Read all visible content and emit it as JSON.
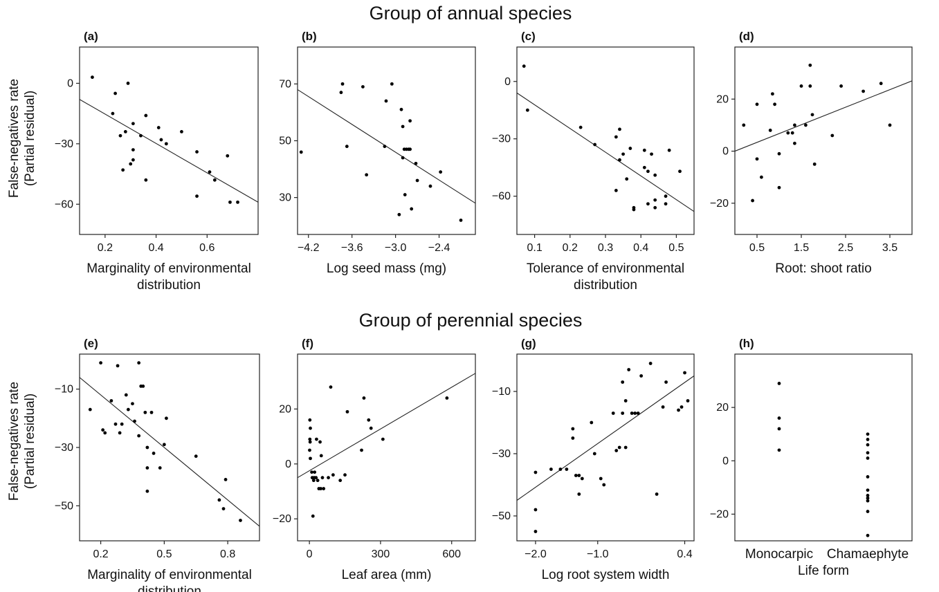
{
  "figure": {
    "ylabel_line1": "False-negatives rate",
    "ylabel_line2": "(Partial residual)",
    "groups": [
      {
        "title": "Group of annual species"
      },
      {
        "title": "Group of perennial species"
      }
    ]
  },
  "chart_data": [
    {
      "panel": "(a)",
      "type": "scatter",
      "xlabel": [
        "Marginality of environmental",
        "distribution"
      ],
      "xlim": [
        0.1,
        0.8
      ],
      "ylim": [
        -75,
        18
      ],
      "xticks": [
        0.2,
        0.4,
        0.6
      ],
      "xtick_labels": [
        "0.2",
        "0.4",
        "0.6"
      ],
      "yticks": [
        0,
        -30,
        -60
      ],
      "ytick_labels": [
        "0",
        "−30",
        "−60"
      ],
      "fit_line": [
        [
          0.1,
          -8
        ],
        [
          0.8,
          -59
        ]
      ],
      "points": [
        [
          0.15,
          3
        ],
        [
          0.24,
          -5
        ],
        [
          0.29,
          0
        ],
        [
          0.23,
          -15
        ],
        [
          0.31,
          -20
        ],
        [
          0.28,
          -24
        ],
        [
          0.26,
          -26
        ],
        [
          0.34,
          -26
        ],
        [
          0.36,
          -16
        ],
        [
          0.31,
          -33
        ],
        [
          0.31,
          -38
        ],
        [
          0.3,
          -40
        ],
        [
          0.27,
          -43
        ],
        [
          0.36,
          -48
        ],
        [
          0.41,
          -22
        ],
        [
          0.42,
          -28
        ],
        [
          0.44,
          -30
        ],
        [
          0.5,
          -24
        ],
        [
          0.56,
          -34
        ],
        [
          0.56,
          -56
        ],
        [
          0.61,
          -44
        ],
        [
          0.63,
          -48
        ],
        [
          0.68,
          -36
        ],
        [
          0.69,
          -59
        ],
        [
          0.72,
          -59
        ]
      ]
    },
    {
      "panel": "(b)",
      "type": "scatter",
      "xlabel": [
        "Log seed mass (mg)"
      ],
      "xlim": [
        -4.35,
        -1.9
      ],
      "ylim": [
        17,
        83
      ],
      "xticks": [
        -4.2,
        -3.6,
        -3.0,
        -2.4
      ],
      "xtick_labels": [
        "−4.2",
        "−3.6",
        "−3.0",
        "−2.4"
      ],
      "yticks": [
        70,
        50,
        30
      ],
      "ytick_labels": [
        "70",
        "50",
        "30"
      ],
      "fit_line": [
        [
          -4.35,
          68
        ],
        [
          -1.9,
          28
        ]
      ],
      "points": [
        [
          -4.3,
          46
        ],
        [
          -3.75,
          67
        ],
        [
          -3.73,
          70
        ],
        [
          -3.67,
          48
        ],
        [
          -3.45,
          69
        ],
        [
          -3.4,
          38
        ],
        [
          -3.15,
          48
        ],
        [
          -3.13,
          64
        ],
        [
          -3.05,
          70
        ],
        [
          -2.95,
          24
        ],
        [
          -2.92,
          61
        ],
        [
          -2.9,
          55
        ],
        [
          -2.9,
          44
        ],
        [
          -2.88,
          47
        ],
        [
          -2.87,
          31
        ],
        [
          -2.85,
          47
        ],
        [
          -2.82,
          47
        ],
        [
          -2.8,
          47
        ],
        [
          -2.8,
          57
        ],
        [
          -2.78,
          26
        ],
        [
          -2.72,
          42
        ],
        [
          -2.7,
          36
        ],
        [
          -2.52,
          34
        ],
        [
          -2.38,
          39
        ],
        [
          -2.1,
          22
        ]
      ]
    },
    {
      "panel": "(c)",
      "type": "scatter",
      "xlabel": [
        "Tolerance of environmental",
        "distribution"
      ],
      "xlim": [
        0.05,
        0.55
      ],
      "ylim": [
        -80,
        18
      ],
      "xticks": [
        0.1,
        0.2,
        0.3,
        0.4,
        0.5
      ],
      "xtick_labels": [
        "0.1",
        "0.2",
        "0.3",
        "0.4",
        "0.5"
      ],
      "yticks": [
        0,
        -30,
        -60
      ],
      "ytick_labels": [
        "0",
        "−30",
        "−60"
      ],
      "fit_line": [
        [
          0.05,
          -6
        ],
        [
          0.55,
          -68
        ]
      ],
      "points": [
        [
          0.07,
          8
        ],
        [
          0.08,
          -15
        ],
        [
          0.23,
          -24
        ],
        [
          0.27,
          -33
        ],
        [
          0.33,
          -29
        ],
        [
          0.33,
          -57
        ],
        [
          0.34,
          -25
        ],
        [
          0.35,
          -38
        ],
        [
          0.34,
          -41
        ],
        [
          0.36,
          -51
        ],
        [
          0.37,
          -35
        ],
        [
          0.38,
          -67
        ],
        [
          0.38,
          -66
        ],
        [
          0.41,
          -36
        ],
        [
          0.41,
          -45
        ],
        [
          0.42,
          -47
        ],
        [
          0.42,
          -64
        ],
        [
          0.43,
          -38
        ],
        [
          0.44,
          -49
        ],
        [
          0.44,
          -62
        ],
        [
          0.44,
          -66
        ],
        [
          0.47,
          -60
        ],
        [
          0.47,
          -64
        ],
        [
          0.48,
          -36
        ],
        [
          0.51,
          -47
        ]
      ]
    },
    {
      "panel": "(d)",
      "type": "scatter",
      "xlabel": [
        "Root: shoot ratio"
      ],
      "xlim": [
        0.0,
        4.0
      ],
      "ylim": [
        -32,
        40
      ],
      "xticks": [
        0.5,
        1.5,
        2.5,
        3.5
      ],
      "xtick_labels": [
        "0.5",
        "1.5",
        "2.5",
        "3.5"
      ],
      "yticks": [
        20,
        0,
        -20
      ],
      "ytick_labels": [
        "20",
        "0",
        "−20"
      ],
      "fit_line": [
        [
          0.0,
          0
        ],
        [
          4.0,
          27
        ]
      ],
      "points": [
        [
          0.2,
          10
        ],
        [
          0.4,
          -19
        ],
        [
          0.5,
          -3
        ],
        [
          0.5,
          18
        ],
        [
          0.6,
          -10
        ],
        [
          0.8,
          8
        ],
        [
          0.85,
          22
        ],
        [
          0.9,
          18
        ],
        [
          1.0,
          -1
        ],
        [
          1.0,
          -14
        ],
        [
          1.2,
          7
        ],
        [
          1.3,
          7
        ],
        [
          1.35,
          3
        ],
        [
          1.35,
          10
        ],
        [
          1.5,
          25
        ],
        [
          1.6,
          10
        ],
        [
          1.7,
          25
        ],
        [
          1.7,
          33
        ],
        [
          1.75,
          14
        ],
        [
          1.8,
          -5
        ],
        [
          2.2,
          6
        ],
        [
          2.4,
          25
        ],
        [
          2.9,
          23
        ],
        [
          3.3,
          26
        ],
        [
          3.5,
          10
        ]
      ]
    },
    {
      "panel": "(e)",
      "type": "scatter",
      "xlabel": [
        "Marginality of environmental",
        "distribution"
      ],
      "xlim": [
        0.1,
        0.95
      ],
      "ylim": [
        -62,
        2
      ],
      "xticks": [
        0.2,
        0.5,
        0.8
      ],
      "xtick_labels": [
        "0.2",
        "0.5",
        "0.8"
      ],
      "yticks": [
        -10,
        -30,
        -50
      ],
      "ytick_labels": [
        "−10",
        "−30",
        "−50"
      ],
      "fit_line": [
        [
          0.1,
          -6
        ],
        [
          0.95,
          -57
        ]
      ],
      "points": [
        [
          0.15,
          -17
        ],
        [
          0.2,
          -1
        ],
        [
          0.21,
          -24
        ],
        [
          0.22,
          -25
        ],
        [
          0.25,
          -14
        ],
        [
          0.27,
          -22
        ],
        [
          0.28,
          -2
        ],
        [
          0.29,
          -25
        ],
        [
          0.3,
          -22
        ],
        [
          0.32,
          -12
        ],
        [
          0.33,
          -17
        ],
        [
          0.35,
          -15
        ],
        [
          0.36,
          -21
        ],
        [
          0.38,
          -1
        ],
        [
          0.38,
          -26
        ],
        [
          0.39,
          -9
        ],
        [
          0.4,
          -9
        ],
        [
          0.41,
          -18
        ],
        [
          0.42,
          -30
        ],
        [
          0.42,
          -37
        ],
        [
          0.42,
          -45
        ],
        [
          0.44,
          -18
        ],
        [
          0.45,
          -32
        ],
        [
          0.48,
          -37
        ],
        [
          0.5,
          -29
        ],
        [
          0.51,
          -20
        ],
        [
          0.65,
          -33
        ],
        [
          0.76,
          -48
        ],
        [
          0.78,
          -51
        ],
        [
          0.79,
          -41
        ],
        [
          0.86,
          -55
        ]
      ]
    },
    {
      "panel": "(f)",
      "type": "scatter",
      "xlabel": [
        "Leaf area (mm)"
      ],
      "xlim": [
        -50,
        700
      ],
      "ylim": [
        -28,
        40
      ],
      "xticks": [
        0,
        300,
        600
      ],
      "xtick_labels": [
        "0",
        "300",
        "600"
      ],
      "yticks": [
        20,
        0,
        -20
      ],
      "ytick_labels": [
        "20",
        "0",
        "−20"
      ],
      "fit_line": [
        [
          -50,
          -5
        ],
        [
          700,
          33
        ]
      ],
      "points": [
        [
          2,
          16
        ],
        [
          4,
          13
        ],
        [
          2,
          9
        ],
        [
          3,
          8
        ],
        [
          1,
          5
        ],
        [
          4,
          2
        ],
        [
          10,
          -3
        ],
        [
          12,
          -5
        ],
        [
          15,
          -19
        ],
        [
          18,
          -6
        ],
        [
          20,
          -5
        ],
        [
          22,
          -3
        ],
        [
          28,
          -5
        ],
        [
          30,
          9
        ],
        [
          35,
          -6
        ],
        [
          40,
          -9
        ],
        [
          45,
          8
        ],
        [
          48,
          -9
        ],
        [
          50,
          3
        ],
        [
          55,
          -5
        ],
        [
          60,
          -9
        ],
        [
          80,
          -5
        ],
        [
          90,
          28
        ],
        [
          100,
          -4
        ],
        [
          130,
          -6
        ],
        [
          150,
          -4
        ],
        [
          160,
          19
        ],
        [
          220,
          5
        ],
        [
          230,
          24
        ],
        [
          250,
          16
        ],
        [
          260,
          13
        ],
        [
          310,
          9
        ],
        [
          580,
          24
        ]
      ]
    },
    {
      "panel": "(g)",
      "type": "scatter",
      "xlabel": [
        "Log root system width"
      ],
      "xlim": [
        -2.3,
        0.55
      ],
      "ylim": [
        -58,
        2
      ],
      "xticks": [
        -2.0,
        -1.0,
        0.4
      ],
      "xtick_labels": [
        "−2.0",
        "−1.0",
        "0.4"
      ],
      "yticks": [
        -10,
        -30,
        -50
      ],
      "ytick_labels": [
        "−10",
        "−30",
        "−50"
      ],
      "fit_line": [
        [
          -2.3,
          -45
        ],
        [
          0.55,
          -5
        ]
      ],
      "points": [
        [
          -2.0,
          -36
        ],
        [
          -2.0,
          -48
        ],
        [
          -2.0,
          -55
        ],
        [
          -1.75,
          -35
        ],
        [
          -1.6,
          -35
        ],
        [
          -1.5,
          -35
        ],
        [
          -1.4,
          -22
        ],
        [
          -1.4,
          -25
        ],
        [
          -1.35,
          -37
        ],
        [
          -1.3,
          -37
        ],
        [
          -1.3,
          -43
        ],
        [
          -1.25,
          -38
        ],
        [
          -1.1,
          -20
        ],
        [
          -1.05,
          -30
        ],
        [
          -0.95,
          -38
        ],
        [
          -0.9,
          -40
        ],
        [
          -0.75,
          -17
        ],
        [
          -0.7,
          -29
        ],
        [
          -0.65,
          -28
        ],
        [
          -0.6,
          -7
        ],
        [
          -0.6,
          -17
        ],
        [
          -0.55,
          -13
        ],
        [
          -0.55,
          -28
        ],
        [
          -0.5,
          -3
        ],
        [
          -0.45,
          -17
        ],
        [
          -0.4,
          -17
        ],
        [
          -0.35,
          -17
        ],
        [
          -0.3,
          -5
        ],
        [
          -0.15,
          -1
        ],
        [
          -0.05,
          -43
        ],
        [
          0.05,
          -15
        ],
        [
          0.1,
          -7
        ],
        [
          0.3,
          -16
        ],
        [
          0.35,
          -15
        ],
        [
          0.45,
          -13
        ],
        [
          0.4,
          -4
        ]
      ]
    },
    {
      "panel": "(h)",
      "type": "scatter",
      "xlabel": [
        "Life form"
      ],
      "categories": [
        "Monocarpic",
        "Chamaephyte"
      ],
      "ylim": [
        -30,
        40
      ],
      "yticks": [
        20,
        0,
        -20
      ],
      "ytick_labels": [
        "20",
        "0",
        "−20"
      ],
      "points": [
        [
          "Monocarpic",
          29
        ],
        [
          "Monocarpic",
          16
        ],
        [
          "Monocarpic",
          12
        ],
        [
          "Monocarpic",
          4
        ],
        [
          "Chamaephyte",
          10
        ],
        [
          "Chamaephyte",
          8
        ],
        [
          "Chamaephyte",
          6
        ],
        [
          "Chamaephyte",
          3
        ],
        [
          "Chamaephyte",
          1
        ],
        [
          "Chamaephyte",
          -6
        ],
        [
          "Chamaephyte",
          -11
        ],
        [
          "Chamaephyte",
          -13
        ],
        [
          "Chamaephyte",
          -14
        ],
        [
          "Chamaephyte",
          -15
        ],
        [
          "Chamaephyte",
          -19
        ],
        [
          "Chamaephyte",
          -28
        ]
      ]
    }
  ]
}
